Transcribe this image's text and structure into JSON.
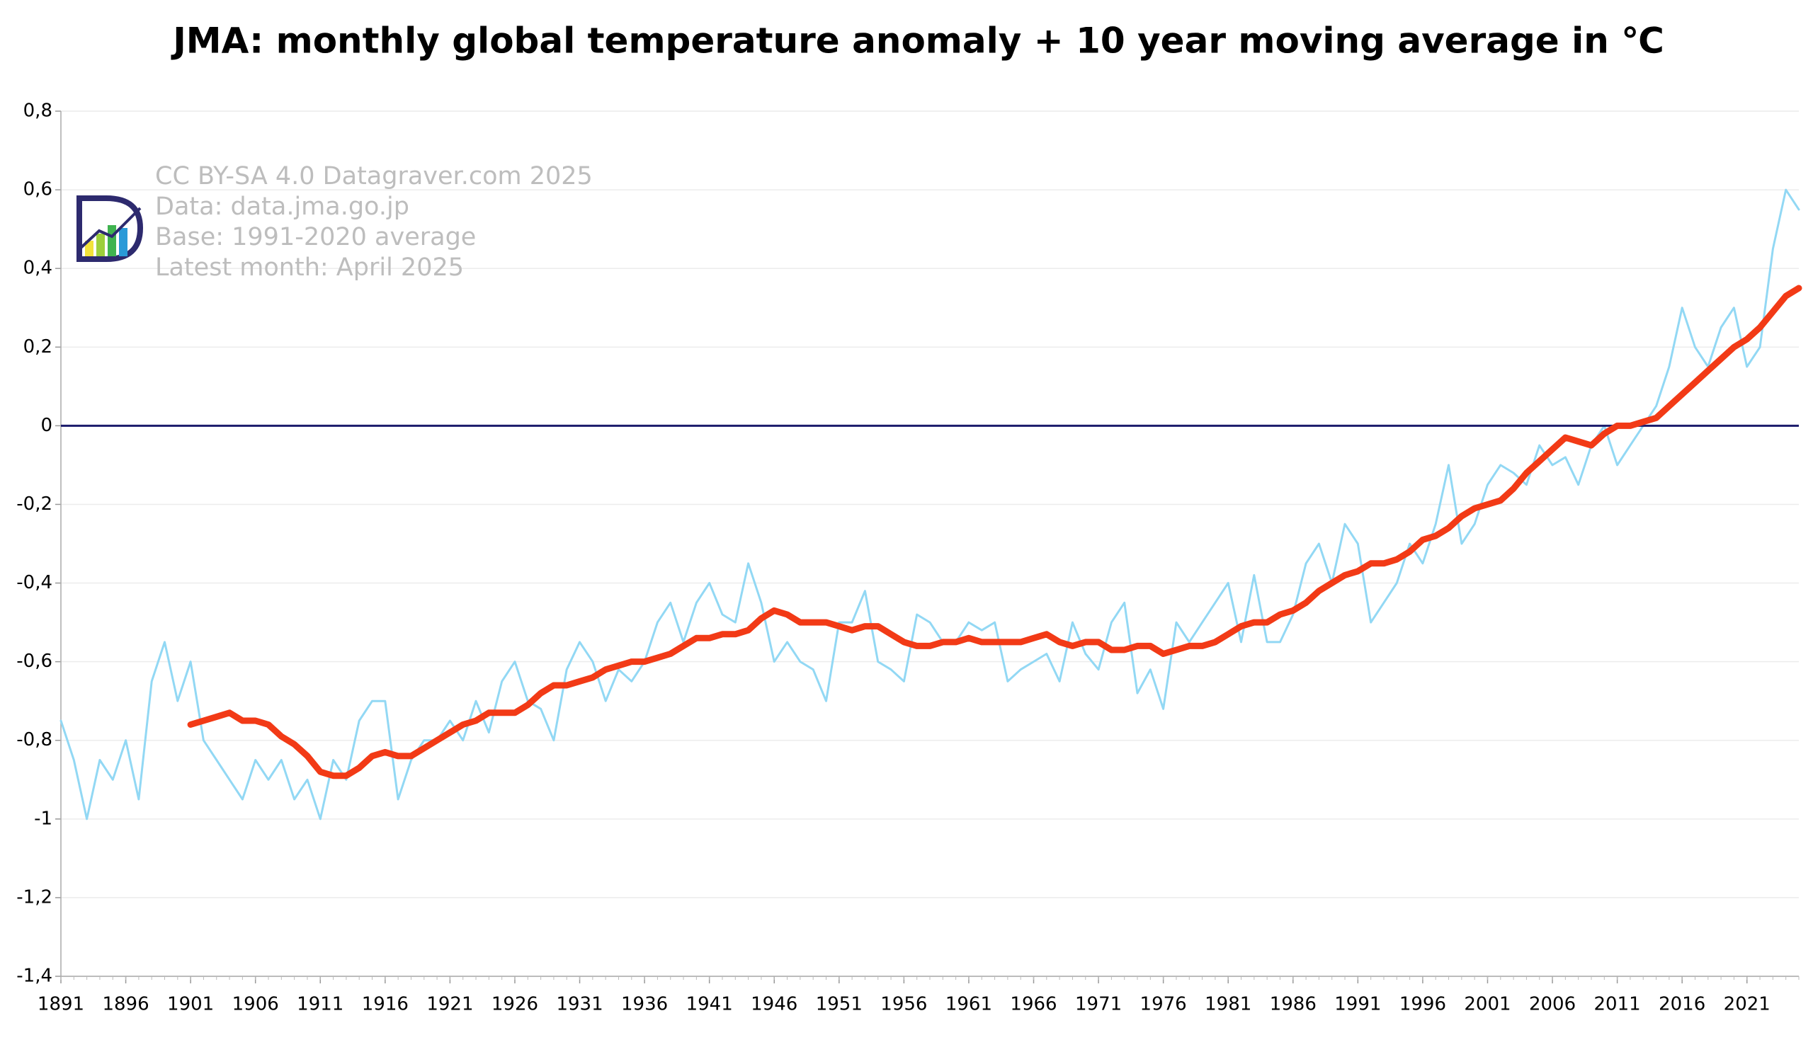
{
  "chart_data": {
    "type": "line",
    "title": "JMA: monthly global temperature anomaly + 10 year moving average in ℃",
    "annotations": [
      "CC BY-SA 4.0 Datagraver.com 2025",
      "Data: data.jma.go.jp",
      "Base: 1991-2020 average",
      "Latest month: April 2025"
    ],
    "x": [
      1891,
      1892,
      1893,
      1894,
      1895,
      1896,
      1897,
      1898,
      1899,
      1900,
      1901,
      1902,
      1903,
      1904,
      1905,
      1906,
      1907,
      1908,
      1909,
      1910,
      1911,
      1912,
      1913,
      1914,
      1915,
      1916,
      1917,
      1918,
      1919,
      1920,
      1921,
      1922,
      1923,
      1924,
      1925,
      1926,
      1927,
      1928,
      1929,
      1930,
      1931,
      1932,
      1933,
      1934,
      1935,
      1936,
      1937,
      1938,
      1939,
      1940,
      1941,
      1942,
      1943,
      1944,
      1945,
      1946,
      1947,
      1948,
      1949,
      1950,
      1951,
      1952,
      1953,
      1954,
      1955,
      1956,
      1957,
      1958,
      1959,
      1960,
      1961,
      1962,
      1963,
      1964,
      1965,
      1966,
      1967,
      1968,
      1969,
      1970,
      1971,
      1972,
      1973,
      1974,
      1975,
      1976,
      1977,
      1978,
      1979,
      1980,
      1981,
      1982,
      1983,
      1984,
      1985,
      1986,
      1987,
      1988,
      1989,
      1990,
      1991,
      1992,
      1993,
      1994,
      1995,
      1996,
      1997,
      1998,
      1999,
      2000,
      2001,
      2002,
      2003,
      2004,
      2005,
      2006,
      2007,
      2008,
      2009,
      2010,
      2011,
      2012,
      2013,
      2014,
      2015,
      2016,
      2017,
      2018,
      2019,
      2020,
      2021,
      2022,
      2023,
      2024,
      2025
    ],
    "series": [
      {
        "name": "monthly global temperature anomaly",
        "color": "#92d8f4",
        "width": 3,
        "values": [
          -0.75,
          -0.85,
          -1.0,
          -0.85,
          -0.9,
          -0.8,
          -0.95,
          -0.65,
          -0.55,
          -0.7,
          -0.6,
          -0.8,
          -0.85,
          -0.9,
          -0.95,
          -0.85,
          -0.9,
          -0.85,
          -0.95,
          -0.9,
          -1.0,
          -0.85,
          -0.9,
          -0.75,
          -0.7,
          -0.7,
          -0.95,
          -0.85,
          -0.8,
          -0.8,
          -0.75,
          -0.8,
          -0.7,
          -0.78,
          -0.65,
          -0.6,
          -0.7,
          -0.72,
          -0.8,
          -0.62,
          -0.55,
          -0.6,
          -0.7,
          -0.62,
          -0.65,
          -0.6,
          -0.5,
          -0.45,
          -0.55,
          -0.45,
          -0.4,
          -0.48,
          -0.5,
          -0.35,
          -0.45,
          -0.6,
          -0.55,
          -0.6,
          -0.62,
          -0.7,
          -0.5,
          -0.5,
          -0.42,
          -0.6,
          -0.62,
          -0.65,
          -0.48,
          -0.5,
          -0.55,
          -0.55,
          -0.5,
          -0.52,
          -0.5,
          -0.65,
          -0.62,
          -0.6,
          -0.58,
          -0.65,
          -0.5,
          -0.58,
          -0.62,
          -0.5,
          -0.45,
          -0.68,
          -0.62,
          -0.72,
          -0.5,
          -0.55,
          -0.5,
          -0.45,
          -0.4,
          -0.55,
          -0.38,
          -0.55,
          -0.55,
          -0.48,
          -0.35,
          -0.3,
          -0.4,
          -0.25,
          -0.3,
          -0.5,
          -0.45,
          -0.4,
          -0.3,
          -0.35,
          -0.25,
          -0.1,
          -0.3,
          -0.25,
          -0.15,
          -0.1,
          -0.12,
          -0.15,
          -0.05,
          -0.1,
          -0.08,
          -0.15,
          -0.05,
          0.0,
          -0.1,
          -0.05,
          0.0,
          0.05,
          0.15,
          0.3,
          0.2,
          0.15,
          0.25,
          0.3,
          0.15,
          0.2,
          0.45,
          0.6,
          0.55
        ]
      },
      {
        "name": "10 year moving average",
        "color": "#f23a16",
        "width": 9,
        "values": [
          null,
          null,
          null,
          null,
          null,
          null,
          null,
          null,
          null,
          null,
          -0.76,
          -0.75,
          -0.74,
          -0.73,
          -0.75,
          -0.75,
          -0.76,
          -0.79,
          -0.81,
          -0.84,
          -0.88,
          -0.89,
          -0.89,
          -0.87,
          -0.84,
          -0.83,
          -0.84,
          -0.84,
          -0.82,
          -0.8,
          -0.78,
          -0.76,
          -0.75,
          -0.73,
          -0.73,
          -0.73,
          -0.71,
          -0.68,
          -0.66,
          -0.66,
          -0.65,
          -0.64,
          -0.62,
          -0.61,
          -0.6,
          -0.6,
          -0.59,
          -0.58,
          -0.56,
          -0.54,
          -0.54,
          -0.53,
          -0.53,
          -0.52,
          -0.49,
          -0.47,
          -0.48,
          -0.5,
          -0.5,
          -0.5,
          -0.51,
          -0.52,
          -0.51,
          -0.51,
          -0.53,
          -0.55,
          -0.56,
          -0.56,
          -0.55,
          -0.55,
          -0.54,
          -0.55,
          -0.55,
          -0.55,
          -0.55,
          -0.54,
          -0.53,
          -0.55,
          -0.56,
          -0.55,
          -0.55,
          -0.57,
          -0.57,
          -0.56,
          -0.56,
          -0.58,
          -0.57,
          -0.56,
          -0.56,
          -0.55,
          -0.53,
          -0.51,
          -0.5,
          -0.5,
          -0.48,
          -0.47,
          -0.45,
          -0.42,
          -0.4,
          -0.38,
          -0.37,
          -0.35,
          -0.35,
          -0.34,
          -0.32,
          -0.29,
          -0.28,
          -0.26,
          -0.23,
          -0.21,
          -0.2,
          -0.19,
          -0.16,
          -0.12,
          -0.09,
          -0.06,
          -0.03,
          -0.04,
          -0.05,
          -0.02,
          0.0,
          0.0,
          0.01,
          0.02,
          0.05,
          0.08,
          0.11,
          0.14,
          0.17,
          0.2,
          0.22,
          0.25,
          0.29,
          0.33,
          0.35
        ]
      }
    ],
    "xlim": [
      1891,
      2025
    ],
    "xticks": [
      1891,
      1896,
      1901,
      1906,
      1911,
      1916,
      1921,
      1926,
      1931,
      1936,
      1941,
      1946,
      1951,
      1956,
      1961,
      1966,
      1971,
      1976,
      1981,
      1986,
      1991,
      1996,
      2001,
      2006,
      2011,
      2016,
      2021
    ],
    "ylim": [
      -1.4,
      0.8
    ],
    "yticks": [
      {
        "value": 0.8,
        "label": "0,8"
      },
      {
        "value": 0.6,
        "label": "0,6"
      },
      {
        "value": 0.4,
        "label": "0,4"
      },
      {
        "value": 0.2,
        "label": "0,2"
      },
      0,
      {
        "value": -0.2,
        "label": "-0,2"
      },
      {
        "value": -0.4,
        "label": "-0,4"
      },
      {
        "value": -0.6,
        "label": "-0,6"
      },
      {
        "value": -0.8,
        "label": "-0,8"
      },
      -1,
      {
        "value": -1.2,
        "label": "-1,2"
      },
      {
        "value": -1.4,
        "label": "-1,4"
      }
    ],
    "grid": true,
    "zero_line_color": "#1b1b6b"
  }
}
